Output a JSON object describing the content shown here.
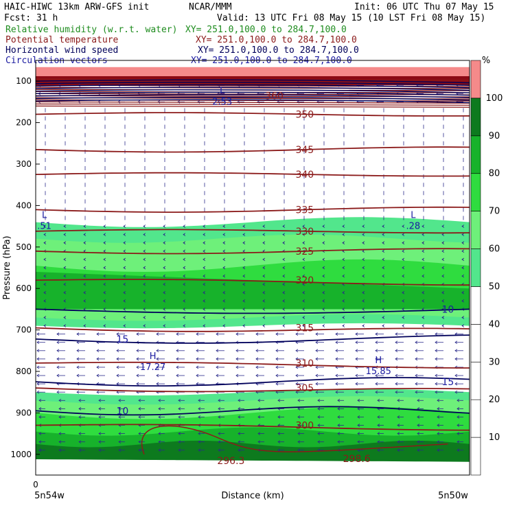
{
  "header": {
    "line1_left": "HAIC-HIWC 13km ARW-GFS init",
    "line1_mid": "NCAR/MMM",
    "line1_right": "Init: 06 UTC Thu 07 May 15",
    "line2_left": "Fcst:    31 h",
    "line2_right": "Valid: 13 UTC Fri 08 May 15 (10 LST Fri 08 May 15)",
    "fields": [
      {
        "name": "Relative humidity (w.r.t. water)",
        "xy": "XY= 251.0,100.0 to 284.7,100.0",
        "color": "#1e8c1e"
      },
      {
        "name": "Potential temperature",
        "xy": "XY= 251.0,100.0 to 284.7,100.0",
        "color": "#8b1a1a"
      },
      {
        "name": "Horizontal wind speed",
        "xy": "XY= 251.0,100.0 to 284.7,100.0",
        "color": "#00005a"
      },
      {
        "name": "Circulation vectors",
        "xy": "XY= 251.0,100.0 to 284.7,100.0",
        "color": "#1a1aa0"
      }
    ]
  },
  "chart_data": {
    "type": "heatmap",
    "xlabel": "Distance (km)",
    "ylabel": "Pressure (hPa)",
    "x_tick_labels": {
      "zero": "0",
      "left": "5n54w",
      "right": "5n50w"
    },
    "y_ticks": [
      100,
      200,
      300,
      400,
      500,
      600,
      700,
      800,
      900,
      1000
    ],
    "y_range": [
      50,
      1050
    ],
    "colorbar": {
      "unit": "%",
      "levels": [
        10,
        20,
        30,
        40,
        50,
        60,
        70,
        80,
        90,
        100
      ],
      "colors": [
        "#ffffff",
        "#ffffff",
        "#ffffff",
        "#ffffff",
        "#ffffff",
        "#52e68c",
        "#6ef07a",
        "#2fdc3f",
        "#17b22b",
        "#0d7a1e",
        "#f58a8a"
      ]
    },
    "theta_contours": [
      {
        "label": "350",
        "p": 180
      },
      {
        "label": "345",
        "p": 265
      },
      {
        "label": "340",
        "p": 325
      },
      {
        "label": "335",
        "p": 410
      },
      {
        "label": "330",
        "p": 462
      },
      {
        "label": "325",
        "p": 510
      },
      {
        "label": "320",
        "p": 580
      },
      {
        "label": "315",
        "p": 695
      },
      {
        "label": "310",
        "p": 780
      },
      {
        "label": "305",
        "p": 840
      },
      {
        "label": "300",
        "p": 930
      }
    ],
    "extra_theta_labels": [
      {
        "label": "360",
        "p": 135,
        "x": 0.55
      },
      {
        "label": "296.3",
        "p": 1015,
        "x": 0.45
      },
      {
        "label": "298.6",
        "p": 1010,
        "x": 0.74
      }
    ],
    "wind_contours": [
      {
        "label": "10",
        "p": 650
      },
      {
        "label": "15",
        "p": 722
      },
      {
        "label": "15",
        "p": 825
      },
      {
        "label": "10",
        "p": 895
      }
    ],
    "extrema": [
      {
        "type": "L",
        "value": "2.53",
        "x": 0.43,
        "p": 140
      },
      {
        "type": "L",
        "value": ".51",
        "x": 0.02,
        "p": 440
      },
      {
        "type": "L",
        "value": ".28",
        "x": 0.87,
        "p": 440
      },
      {
        "type": "H",
        "value": "17.27",
        "x": 0.27,
        "p": 780
      },
      {
        "type": "H",
        "value": "15.85",
        "x": 0.79,
        "p": 790
      }
    ]
  }
}
